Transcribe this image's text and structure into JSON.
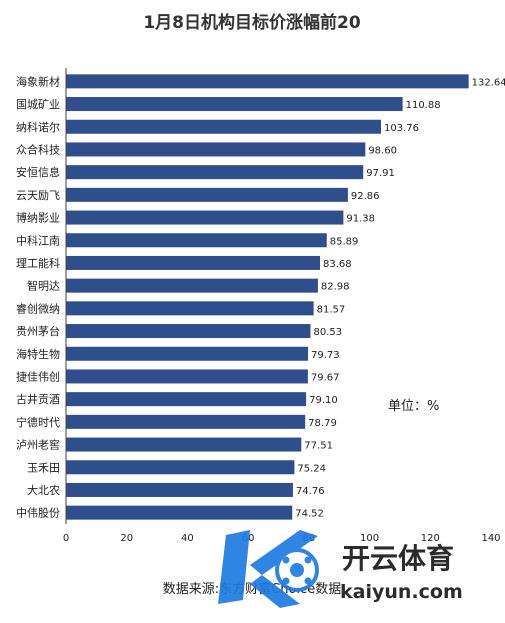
{
  "chart_data": {
    "type": "bar",
    "orientation": "horizontal",
    "title": "1月8日机构目标价涨幅前20",
    "categories": [
      "海象新材",
      "国城矿业",
      "纳科诺尔",
      "众合科技",
      "安恒信息",
      "云天励飞",
      "博纳影业",
      "中科江南",
      "理工能科",
      "智明达",
      "睿创微纳",
      "贵州茅台",
      "海特生物",
      "捷佳伟创",
      "古井贡酒",
      "宁德时代",
      "泸州老窖",
      "玉禾田",
      "大北农",
      "中伟股份"
    ],
    "values": [
      132.64,
      110.88,
      103.76,
      98.6,
      97.91,
      92.86,
      91.38,
      85.89,
      83.68,
      82.98,
      81.57,
      80.53,
      79.73,
      79.67,
      79.1,
      78.79,
      77.51,
      75.24,
      74.76,
      74.52
    ],
    "value_labels": [
      "132.64",
      "110.88",
      "103.76",
      "98.60",
      "97.91",
      "92.86",
      "91.38",
      "85.89",
      "83.68",
      "82.98",
      "81.57",
      "80.53",
      "79.73",
      "79.67",
      "79.10",
      "78.79",
      "77.51",
      "75.24",
      "74.76",
      "74.52"
    ],
    "xlim": [
      0,
      140
    ],
    "xticks": [
      "0",
      "20",
      "40",
      "60",
      "80",
      "100",
      "120",
      "140"
    ],
    "unit_label": "单位：%",
    "source": "数据来源:东方财富Choice数据",
    "grid": false,
    "bar_color": "#2f4f8c"
  },
  "watermark": {
    "brand_cn": "开云体育",
    "brand_en": "kaiyun.com",
    "logo_letter": "K"
  }
}
